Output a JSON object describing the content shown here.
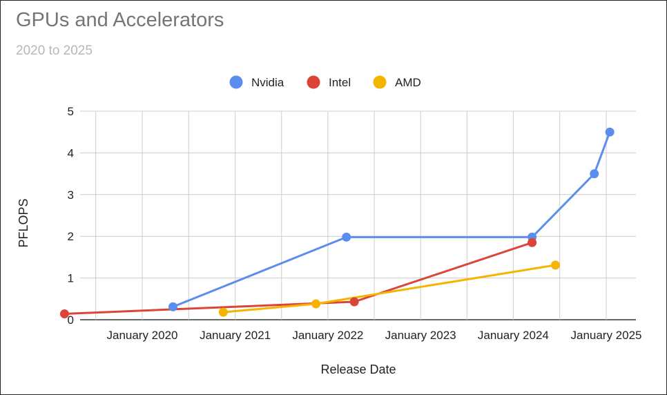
{
  "chart_data": {
    "type": "line",
    "title": "GPUs and Accelerators",
    "subtitle": "2020 to 2025",
    "xlabel": "Release Date",
    "ylabel": "PFLOPS",
    "x_ticks": [
      "January 2020",
      "January 2021",
      "January 2022",
      "January 2023",
      "January 2024",
      "January 2025"
    ],
    "y_ticks": [
      "0",
      "1",
      "2",
      "3",
      "4",
      "5"
    ],
    "xlim": [
      "2019-03-01",
      "2025-01-15"
    ],
    "ylim": [
      0,
      5
    ],
    "grid": true,
    "legend_position": "top",
    "series": [
      {
        "name": "Nvidia",
        "color": "#5b8def",
        "points": [
          {
            "x": "2020-05-01",
            "y": 0.31
          },
          {
            "x": "2022-03-15",
            "y": 1.98
          },
          {
            "x": "2024-03-15",
            "y": 1.98
          },
          {
            "x": "2024-11-15",
            "y": 3.5
          },
          {
            "x": "2025-01-15",
            "y": 4.5
          }
        ]
      },
      {
        "name": "Intel",
        "color": "#db4437",
        "points": [
          {
            "x": "2019-03-01",
            "y": 0.14
          },
          {
            "x": "2022-04-15",
            "y": 0.43
          },
          {
            "x": "2024-03-15",
            "y": 1.85
          }
        ]
      },
      {
        "name": "AMD",
        "color": "#f4b400",
        "points": [
          {
            "x": "2020-11-15",
            "y": 0.18
          },
          {
            "x": "2021-11-15",
            "y": 0.38
          },
          {
            "x": "2024-06-15",
            "y": 1.31
          }
        ]
      }
    ]
  }
}
